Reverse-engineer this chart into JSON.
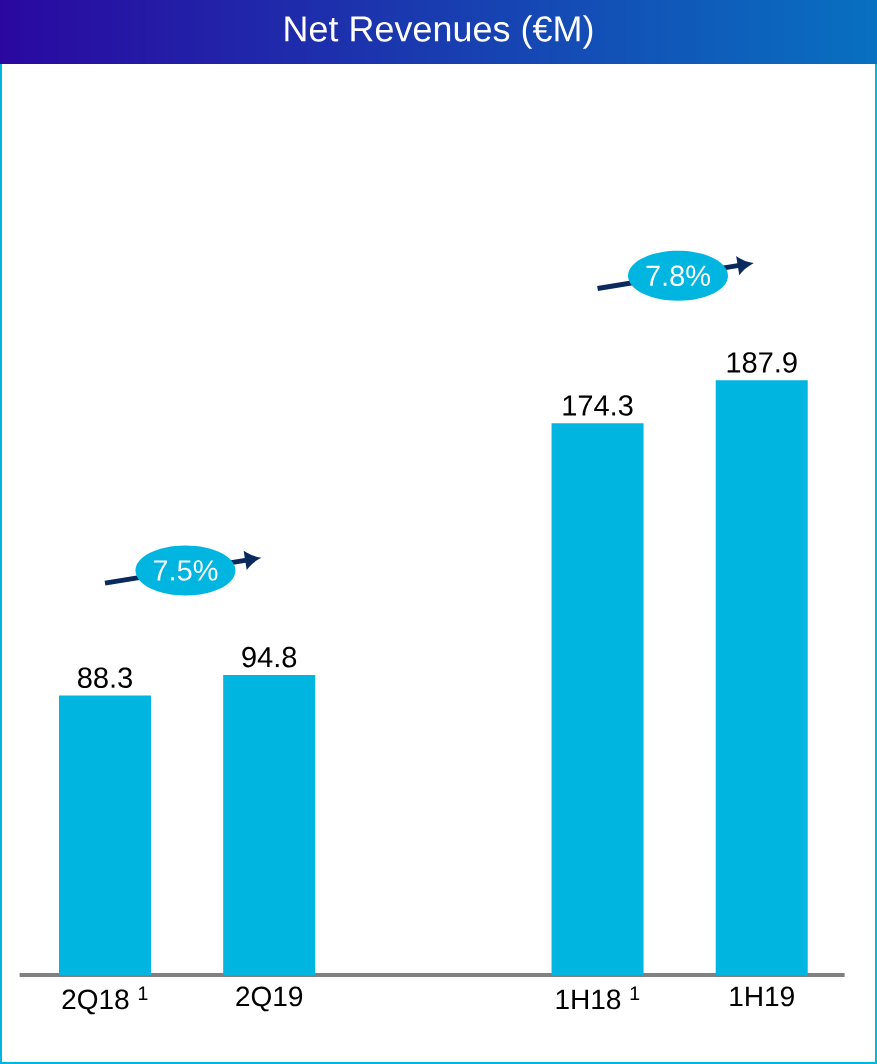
{
  "chart_data": {
    "type": "bar",
    "title": "Net Revenues (€M)",
    "categories": [
      "2Q18 $^{1}$",
      "2Q19",
      null,
      "1H18 $^{1}$",
      "1H19"
    ],
    "values": [
      88.3,
      94.8,
      null,
      174.3,
      187.9
    ],
    "color": "#00b5e0",
    "data_labels": true,
    "annotations": [
      "7.5%",
      "7.8%"
    ]
  }
}
